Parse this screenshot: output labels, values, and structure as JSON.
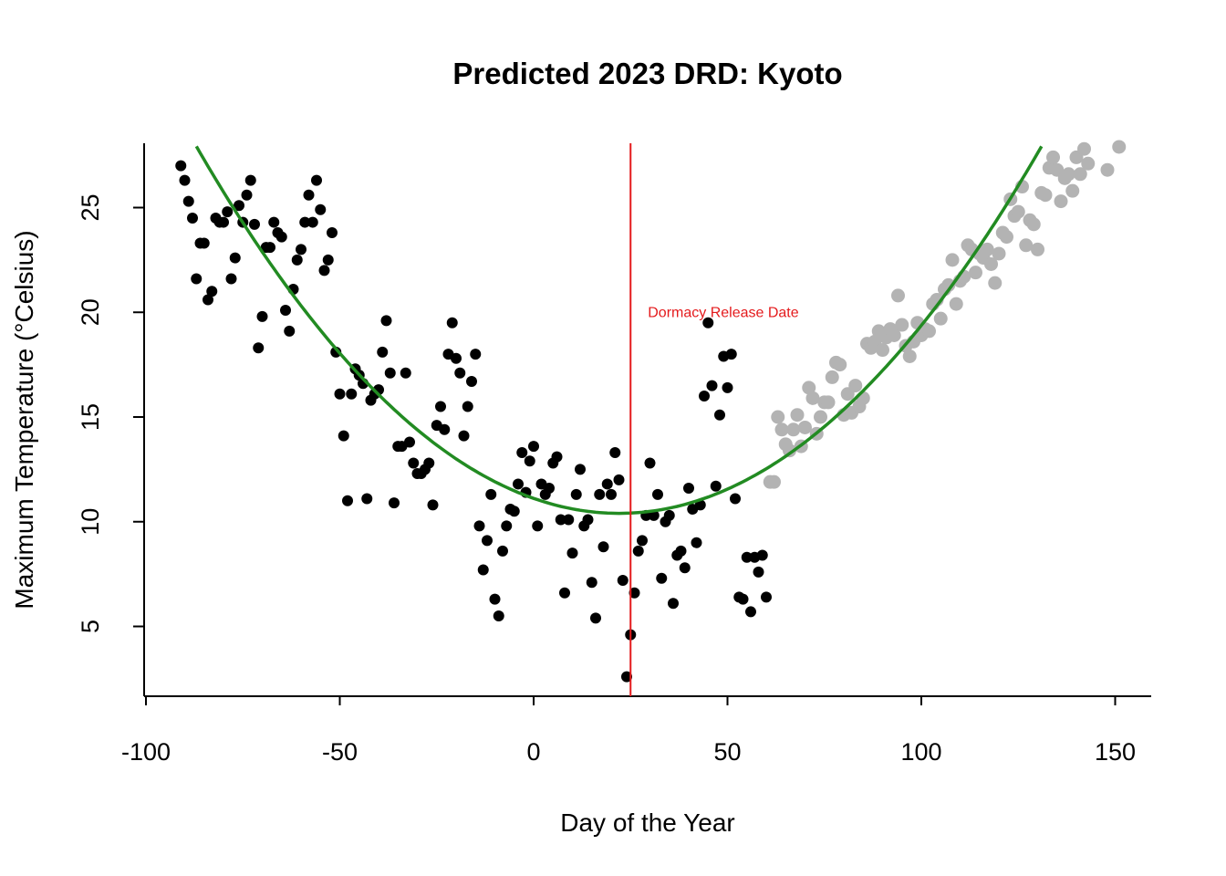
{
  "chart_data": {
    "type": "scatter",
    "title": "Predicted 2023 DRD: Kyoto",
    "xlabel": "Day of the Year",
    "ylabel": "Maximum Temperature (°Celsius)",
    "xlim": [
      -101,
      159
    ],
    "ylim": [
      1.7,
      28.0
    ],
    "x_ticks": [
      -100,
      -50,
      0,
      50,
      100,
      150
    ],
    "x_tick_labels": [
      "-100",
      "-50",
      "0",
      "50",
      "100",
      "150"
    ],
    "y_ticks": [
      5,
      10,
      15,
      20,
      25
    ],
    "y_tick_labels": [
      "5",
      "10",
      "15",
      "20",
      "25"
    ],
    "grid": false,
    "legend": "none",
    "colors": {
      "observed": "#000000",
      "future": "#b3b3b3",
      "fit": "#228b22",
      "drd_line": "#e41a1c"
    },
    "fit_curve": {
      "form": "quadratic",
      "vertex_x": 22,
      "vertex_y": 10.4,
      "a": 0.001475
    },
    "drd_line": {
      "x": 25,
      "label": "Dormacy Release Date"
    },
    "series": [
      {
        "points": [
          [
            -91,
            27.0
          ],
          [
            -90,
            26.3
          ],
          [
            -89,
            25.3
          ],
          [
            -88,
            24.5
          ],
          [
            -87,
            21.6
          ],
          [
            -86,
            23.3
          ],
          [
            -85,
            23.3
          ],
          [
            -84,
            20.6
          ],
          [
            -83,
            21.0
          ],
          [
            -82,
            24.5
          ],
          [
            -81,
            24.3
          ],
          [
            -80,
            24.3
          ],
          [
            -79,
            24.8
          ],
          [
            -78,
            21.6
          ],
          [
            -77,
            22.6
          ],
          [
            -76,
            25.1
          ],
          [
            -75,
            24.3
          ],
          [
            -74,
            25.6
          ],
          [
            -73,
            26.3
          ],
          [
            -72,
            24.2
          ],
          [
            -71,
            18.3
          ],
          [
            -70,
            19.8
          ],
          [
            -69,
            23.1
          ],
          [
            -68,
            23.1
          ],
          [
            -67,
            24.3
          ],
          [
            -66,
            23.8
          ],
          [
            -65,
            23.6
          ],
          [
            -64,
            20.1
          ],
          [
            -63,
            19.1
          ],
          [
            -62,
            21.1
          ],
          [
            -61,
            22.5
          ],
          [
            -60,
            23.0
          ],
          [
            -59,
            24.3
          ],
          [
            -58,
            25.6
          ],
          [
            -57,
            24.3
          ],
          [
            -56,
            26.3
          ],
          [
            -55,
            24.9
          ],
          [
            -54,
            22.0
          ],
          [
            -53,
            22.5
          ],
          [
            -52,
            23.8
          ],
          [
            -51,
            18.1
          ],
          [
            -50,
            16.1
          ],
          [
            -49,
            14.1
          ],
          [
            -48,
            11.0
          ],
          [
            -47,
            16.1
          ],
          [
            -46,
            17.3
          ],
          [
            -45,
            17.0
          ],
          [
            -44,
            16.6
          ],
          [
            -43,
            11.1
          ],
          [
            -42,
            15.8
          ],
          [
            -41,
            16.1
          ],
          [
            -40,
            16.3
          ],
          [
            -39,
            18.1
          ],
          [
            -38,
            19.6
          ],
          [
            -37,
            17.1
          ],
          [
            -36,
            10.9
          ],
          [
            -35,
            13.6
          ],
          [
            -34,
            13.6
          ],
          [
            -33,
            17.1
          ],
          [
            -32,
            13.8
          ],
          [
            -31,
            12.8
          ],
          [
            -30,
            12.3
          ],
          [
            -29,
            12.3
          ],
          [
            -28,
            12.5
          ],
          [
            -27,
            12.8
          ],
          [
            -26,
            10.8
          ],
          [
            -25,
            14.6
          ],
          [
            -24,
            15.5
          ],
          [
            -23,
            14.4
          ],
          [
            -22,
            18.0
          ],
          [
            -21,
            19.5
          ],
          [
            -20,
            17.8
          ],
          [
            -19,
            17.1
          ],
          [
            -18,
            14.1
          ],
          [
            -17,
            15.5
          ],
          [
            -16,
            16.7
          ],
          [
            -15,
            18.0
          ],
          [
            -14,
            9.8
          ],
          [
            -13,
            7.7
          ],
          [
            -12,
            9.1
          ],
          [
            -11,
            11.3
          ],
          [
            -10,
            6.3
          ],
          [
            -9,
            5.5
          ],
          [
            -8,
            8.6
          ],
          [
            -7,
            9.8
          ],
          [
            -6,
            10.6
          ],
          [
            -5,
            10.5
          ],
          [
            -4,
            11.8
          ],
          [
            -3,
            13.3
          ],
          [
            -2,
            11.4
          ],
          [
            -1,
            12.9
          ],
          [
            0,
            13.6
          ],
          [
            1,
            9.8
          ],
          [
            2,
            11.8
          ],
          [
            3,
            11.3
          ],
          [
            4,
            11.6
          ],
          [
            5,
            12.8
          ],
          [
            6,
            13.1
          ],
          [
            7,
            10.1
          ],
          [
            8,
            6.6
          ],
          [
            9,
            10.1
          ],
          [
            10,
            8.5
          ],
          [
            11,
            11.3
          ],
          [
            12,
            12.5
          ],
          [
            13,
            9.8
          ],
          [
            14,
            10.1
          ],
          [
            15,
            7.1
          ],
          [
            16,
            5.4
          ],
          [
            17,
            11.3
          ],
          [
            18,
            8.8
          ],
          [
            19,
            11.8
          ],
          [
            20,
            11.3
          ],
          [
            21,
            13.3
          ],
          [
            22,
            12.0
          ],
          [
            23,
            7.2
          ],
          [
            24,
            2.6
          ],
          [
            25,
            4.6
          ],
          [
            26,
            6.6
          ],
          [
            27,
            8.6
          ],
          [
            28,
            9.1
          ],
          [
            29,
            10.3
          ],
          [
            30,
            12.8
          ],
          [
            31,
            10.3
          ],
          [
            32,
            11.3
          ],
          [
            33,
            7.3
          ],
          [
            34,
            10.0
          ],
          [
            35,
            10.3
          ],
          [
            36,
            6.1
          ],
          [
            37,
            8.4
          ],
          [
            38,
            8.6
          ],
          [
            39,
            7.8
          ],
          [
            40,
            11.6
          ],
          [
            41,
            10.6
          ],
          [
            42,
            9.0
          ],
          [
            43,
            10.8
          ],
          [
            44,
            16.0
          ],
          [
            45,
            19.5
          ],
          [
            46,
            16.5
          ],
          [
            47,
            11.7
          ],
          [
            48,
            15.1
          ],
          [
            49,
            17.9
          ],
          [
            50,
            16.4
          ],
          [
            51,
            18.0
          ],
          [
            52,
            11.1
          ],
          [
            53,
            6.4
          ],
          [
            54,
            6.3
          ],
          [
            55,
            8.3
          ],
          [
            56,
            5.7
          ],
          [
            57,
            8.3
          ],
          [
            58,
            7.6
          ],
          [
            59,
            8.4
          ],
          [
            60,
            6.4
          ]
        ]
      },
      {
        "points": [
          [
            61,
            11.9
          ],
          [
            62,
            11.9
          ],
          [
            63,
            15.0
          ],
          [
            64,
            14.4
          ],
          [
            65,
            13.7
          ],
          [
            66,
            13.4
          ],
          [
            67,
            14.4
          ],
          [
            68,
            15.1
          ],
          [
            69,
            13.6
          ],
          [
            70,
            14.5
          ],
          [
            71,
            16.4
          ],
          [
            72,
            15.9
          ],
          [
            73,
            14.2
          ],
          [
            74,
            15.0
          ],
          [
            75,
            15.7
          ],
          [
            76,
            15.7
          ],
          [
            77,
            16.9
          ],
          [
            78,
            17.6
          ],
          [
            79,
            17.5
          ],
          [
            80,
            15.1
          ],
          [
            81,
            16.1
          ],
          [
            82,
            15.2
          ],
          [
            83,
            16.5
          ],
          [
            84,
            15.5
          ],
          [
            85,
            15.9
          ],
          [
            86,
            18.5
          ],
          [
            87,
            18.3
          ],
          [
            88,
            18.6
          ],
          [
            89,
            19.1
          ],
          [
            90,
            18.2
          ],
          [
            91,
            18.8
          ],
          [
            92,
            19.2
          ],
          [
            93,
            18.9
          ],
          [
            94,
            20.8
          ],
          [
            95,
            19.4
          ],
          [
            96,
            18.4
          ],
          [
            97,
            17.9
          ],
          [
            98,
            18.6
          ],
          [
            99,
            19.5
          ],
          [
            100,
            18.9
          ],
          [
            101,
            19.2
          ],
          [
            102,
            19.1
          ],
          [
            103,
            20.4
          ],
          [
            104,
            20.6
          ],
          [
            105,
            19.7
          ],
          [
            106,
            21.1
          ],
          [
            107,
            21.3
          ],
          [
            108,
            22.5
          ],
          [
            109,
            20.4
          ],
          [
            110,
            21.5
          ],
          [
            111,
            21.7
          ],
          [
            112,
            23.2
          ],
          [
            113,
            23.0
          ],
          [
            114,
            21.9
          ],
          [
            115,
            22.8
          ],
          [
            116,
            22.6
          ],
          [
            117,
            23.0
          ],
          [
            118,
            22.3
          ],
          [
            119,
            21.4
          ],
          [
            120,
            22.8
          ],
          [
            121,
            23.8
          ],
          [
            122,
            23.6
          ],
          [
            123,
            25.4
          ],
          [
            124,
            24.6
          ],
          [
            125,
            24.8
          ],
          [
            126,
            26.0
          ],
          [
            127,
            23.2
          ],
          [
            128,
            24.4
          ],
          [
            129,
            24.2
          ],
          [
            130,
            23.0
          ],
          [
            131,
            25.7
          ],
          [
            132,
            25.6
          ],
          [
            133,
            26.9
          ],
          [
            134,
            27.4
          ],
          [
            135,
            26.8
          ],
          [
            136,
            25.3
          ],
          [
            137,
            26.4
          ],
          [
            138,
            26.6
          ],
          [
            139,
            25.8
          ],
          [
            140,
            27.4
          ],
          [
            141,
            26.6
          ],
          [
            142,
            27.8
          ],
          [
            143,
            27.1
          ],
          [
            148,
            26.8
          ],
          [
            151,
            27.9
          ]
        ]
      }
    ]
  }
}
